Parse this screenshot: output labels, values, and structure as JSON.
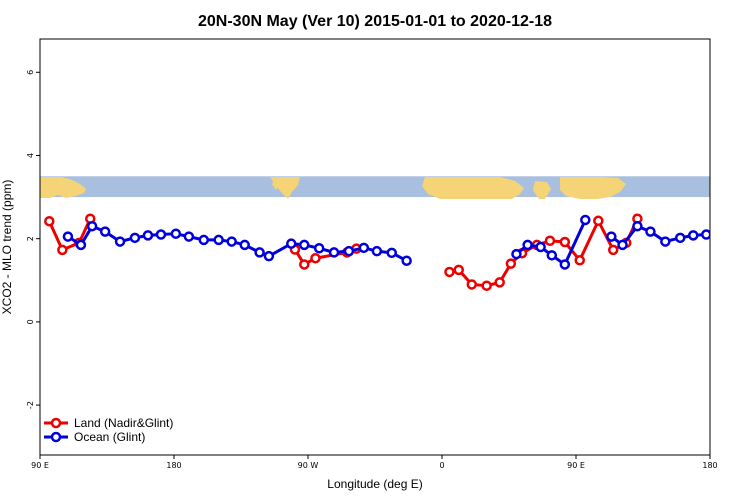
{
  "chart_data": {
    "type": "line",
    "title": "20N-30N May (Ver 10)   2015-01-01 to 2020-12-18",
    "xlabel": "Longitude (deg E)",
    "ylabel": "XCO2 - MLO trend (ppm)",
    "xlim": [
      90,
      450
    ],
    "ylim": [
      -3.2,
      6.8
    ],
    "x_ticks": [
      {
        "value": 90,
        "label": "90 E"
      },
      {
        "value": 162,
        "label": "180"
      },
      {
        "value": 234,
        "label": "90 W"
      },
      {
        "value": 306,
        "label": "0"
      },
      {
        "value": 378,
        "label": "90 E"
      },
      {
        "value": 450,
        "label": "180"
      }
    ],
    "y_ticks": [
      {
        "value": -2,
        "label": "-2"
      },
      {
        "value": 0,
        "label": "0"
      },
      {
        "value": 2,
        "label": "2"
      },
      {
        "value": 4,
        "label": "4"
      },
      {
        "value": 6,
        "label": "6"
      }
    ],
    "map_band": {
      "ymin": 3.0,
      "ymax": 3.5,
      "ocean_color": "#a8bfdf",
      "land_color": "#f5d478"
    },
    "legend": {
      "position": "bottom-left"
    },
    "series": [
      {
        "name": "Land (Nadir&Glint)",
        "color": "#ee0000",
        "segments": [
          [
            [
              95,
              2.42
            ],
            [
              102,
              1.73
            ],
            [
              111,
              1.9
            ],
            [
              117,
              2.48
            ]
          ],
          [
            [
              227,
              1.74
            ],
            [
              232,
              1.38
            ],
            [
              238,
              1.53
            ],
            [
              255,
              1.67
            ],
            [
              260,
              1.76
            ]
          ],
          [
            [
              310,
              1.2
            ],
            [
              315,
              1.25
            ],
            [
              322,
              0.9
            ],
            [
              330,
              0.87
            ],
            [
              337,
              0.95
            ],
            [
              343,
              1.4
            ],
            [
              349,
              1.65
            ],
            [
              357,
              1.85
            ],
            [
              364,
              1.95
            ],
            [
              372,
              1.92
            ],
            [
              380,
              1.48
            ],
            [
              390,
              2.43
            ],
            [
              398,
              1.73
            ],
            [
              405,
              1.9
            ],
            [
              411,
              2.48
            ]
          ]
        ]
      },
      {
        "name": "Ocean (Glint)",
        "color": "#0000dd",
        "segments": [
          [
            [
              105,
              2.05
            ],
            [
              112,
              1.85
            ],
            [
              118,
              2.3
            ],
            [
              125,
              2.17
            ],
            [
              133,
              1.93
            ],
            [
              141,
              2.02
            ],
            [
              148,
              2.08
            ],
            [
              155,
              2.1
            ],
            [
              163,
              2.12
            ],
            [
              170,
              2.05
            ],
            [
              178,
              1.97
            ],
            [
              186,
              1.97
            ],
            [
              193,
              1.93
            ],
            [
              200,
              1.85
            ],
            [
              208,
              1.67
            ],
            [
              213,
              1.58
            ],
            [
              225,
              1.88
            ],
            [
              232,
              1.85
            ],
            [
              240,
              1.77
            ],
            [
              248,
              1.67
            ],
            [
              256,
              1.7
            ],
            [
              264,
              1.78
            ],
            [
              271,
              1.7
            ],
            [
              279,
              1.66
            ],
            [
              287,
              1.47
            ]
          ],
          [
            [
              346,
              1.63
            ],
            [
              352,
              1.85
            ],
            [
              359,
              1.8
            ],
            [
              365,
              1.6
            ],
            [
              372,
              1.38
            ],
            [
              383,
              2.45
            ]
          ],
          [
            [
              397,
              2.05
            ],
            [
              403,
              1.85
            ],
            [
              411,
              2.3
            ],
            [
              418,
              2.17
            ],
            [
              426,
              1.93
            ],
            [
              434,
              2.02
            ],
            [
              441,
              2.08
            ],
            [
              448,
              2.1
            ]
          ]
        ]
      }
    ]
  }
}
